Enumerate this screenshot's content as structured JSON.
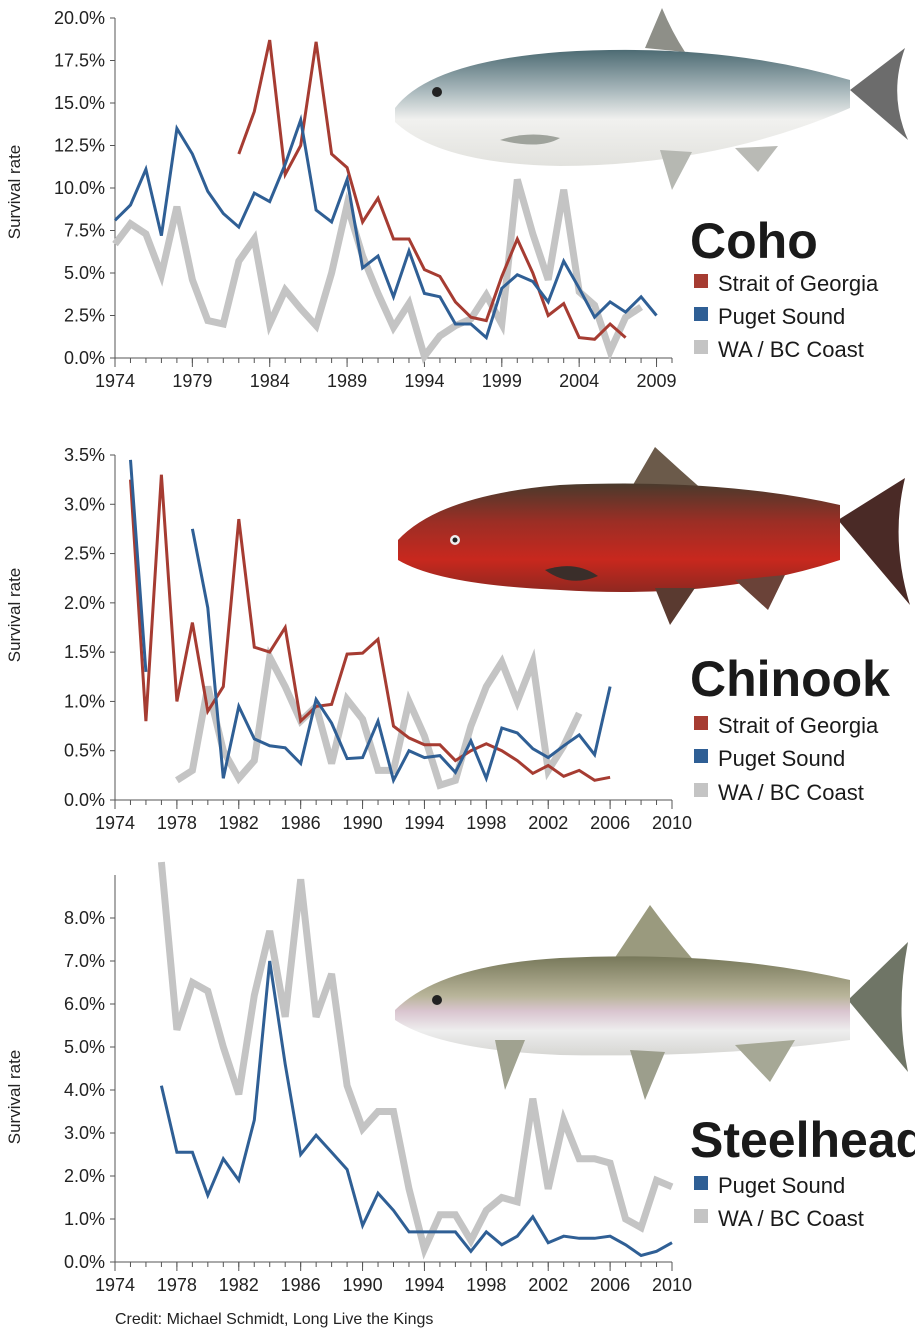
{
  "credit": "Credit: Michael Schmidt, Long Live the Kings",
  "colors": {
    "strait_of_georgia": "#a63c32",
    "puget_sound": "#2f5f95",
    "wa_bc_coast": "#c4c4c4"
  },
  "chart_data": [
    {
      "type": "line",
      "title": "Coho",
      "ylabel": "Survival rate",
      "ylim": [
        0,
        20
      ],
      "y_ticks": [
        "0.0%",
        "2.5%",
        "5.0%",
        "7.5%",
        "10.0%",
        "12.5%",
        "15.0%",
        "17.5%",
        "20.0%"
      ],
      "xlim": [
        1974,
        2010
      ],
      "x_ticks": [
        "1974",
        "1979",
        "1984",
        "1989",
        "1994",
        "1999",
        "2004",
        "2009"
      ],
      "series": [
        {
          "name": "Strait of Georgia",
          "color": "#a63c32",
          "x": [
            1982,
            1983,
            1984,
            1985,
            1986,
            1987,
            1988,
            1989,
            1990,
            1991,
            1992,
            1993,
            1994,
            1995,
            1996,
            1997,
            1998,
            1999,
            2000,
            2001,
            2002,
            2003,
            2004,
            2005,
            2006,
            2007
          ],
          "y": [
            12.0,
            14.5,
            18.7,
            10.8,
            12.5,
            18.6,
            12.0,
            11.2,
            8.0,
            9.4,
            7.0,
            7.0,
            5.2,
            4.8,
            3.3,
            2.4,
            2.2,
            4.8,
            7.0,
            5.0,
            2.5,
            3.2,
            1.2,
            1.1,
            2.0,
            1.2
          ]
        },
        {
          "name": "Puget Sound",
          "color": "#2f5f95",
          "x": [
            1974,
            1975,
            1976,
            1977,
            1978,
            1979,
            1980,
            1981,
            1982,
            1983,
            1984,
            1985,
            1986,
            1987,
            1988,
            1989,
            1990,
            1991,
            1992,
            1993,
            1994,
            1995,
            1996,
            1997,
            1998,
            1999,
            2000,
            2001,
            2002,
            2003,
            2004,
            2005,
            2006,
            2007,
            2008,
            2009
          ],
          "y": [
            8.1,
            9.0,
            11.1,
            7.2,
            13.5,
            12.0,
            9.8,
            8.5,
            7.7,
            9.7,
            9.2,
            11.4,
            14.0,
            8.7,
            8.0,
            10.5,
            5.3,
            6.0,
            3.6,
            6.3,
            3.8,
            3.6,
            2.0,
            2.0,
            1.2,
            4.1,
            4.9,
            4.5,
            3.3,
            5.7,
            4.1,
            2.4,
            3.3,
            2.7,
            3.6,
            2.5
          ]
        },
        {
          "name": "WA / BC Coast",
          "color": "#c4c4c4",
          "x": [
            1974,
            1975,
            1976,
            1977,
            1978,
            1979,
            1980,
            1981,
            1982,
            1983,
            1984,
            1985,
            1986,
            1987,
            1988,
            1989,
            1990,
            1991,
            1992,
            1993,
            1994,
            1995,
            1996,
            1997,
            1998,
            1999,
            2000,
            2001,
            2002,
            2003,
            2004,
            2005,
            2006,
            2007,
            2008
          ],
          "y": [
            6.7,
            7.9,
            7.3,
            4.9,
            8.9,
            4.6,
            2.2,
            2.0,
            5.7,
            7.0,
            2.0,
            4.0,
            2.9,
            1.9,
            5.0,
            9.0,
            6.0,
            3.8,
            1.8,
            3.2,
            0.1,
            1.3,
            1.9,
            2.3,
            3.7,
            2.0,
            10.5,
            7.3,
            4.6,
            9.9,
            3.9,
            3.1,
            0.4,
            2.4,
            3.0
          ]
        }
      ]
    },
    {
      "type": "line",
      "title": "Chinook",
      "ylabel": "Survival rate",
      "ylim": [
        0,
        3.5
      ],
      "y_ticks": [
        "0.0%",
        "0.5%",
        "1.0%",
        "1.5%",
        "2.0%",
        "2.5%",
        "3.0%",
        "3.5%"
      ],
      "xlim": [
        1974,
        2010
      ],
      "x_ticks": [
        "1974",
        "1978",
        "1982",
        "1986",
        "1990",
        "1994",
        "1998",
        "2002",
        "2006",
        "2010"
      ],
      "series": [
        {
          "name": "Strait of Georgia",
          "color": "#a63c32",
          "x": [
            1975,
            1976,
            1977,
            1978,
            1979,
            1980,
            1981,
            1982,
            1983,
            1984,
            1985,
            1986,
            1987,
            1988,
            1989,
            1990,
            1991,
            1992,
            1993,
            1994,
            1995,
            1996,
            1997,
            1998,
            1999,
            2000,
            2001,
            2002,
            2003,
            2004,
            2005,
            2006
          ],
          "y": [
            3.25,
            0.8,
            3.3,
            1.0,
            1.8,
            0.9,
            1.15,
            2.85,
            1.55,
            1.5,
            1.75,
            0.8,
            0.95,
            0.97,
            1.48,
            1.49,
            1.63,
            0.75,
            0.63,
            0.56,
            0.56,
            0.4,
            0.5,
            0.57,
            0.5,
            0.4,
            0.27,
            0.35,
            0.24,
            0.3,
            0.2,
            0.23
          ]
        },
        {
          "name": "Puget Sound",
          "color": "#2f5f95",
          "x": [
            1975,
            1976,
            1977,
            1979,
            1980,
            1981,
            1982,
            1983,
            1984,
            1985,
            1986,
            1987,
            1988,
            1989,
            1990,
            1991,
            1992,
            1993,
            1994,
            1995,
            1996,
            1997,
            1998,
            1999,
            2000,
            2001,
            2002,
            2003,
            2004,
            2005,
            2006
          ],
          "y": [
            3.45,
            1.3,
            null,
            2.75,
            1.95,
            0.22,
            0.95,
            0.62,
            0.55,
            0.53,
            0.37,
            1.02,
            0.78,
            0.42,
            0.43,
            0.8,
            0.2,
            0.5,
            0.43,
            0.45,
            0.28,
            0.6,
            0.22,
            0.73,
            0.68,
            0.52,
            0.43,
            0.55,
            0.66,
            0.46,
            1.15
          ]
        },
        {
          "name": "WA / BC Coast",
          "color": "#c4c4c4",
          "x": [
            1978,
            1979,
            1980,
            1981,
            1982,
            1983,
            1984,
            1985,
            1986,
            1987,
            1988,
            1989,
            1990,
            1991,
            1992,
            1993,
            1994,
            1995,
            1996,
            1997,
            1998,
            1999,
            2000,
            2001,
            2002,
            2003,
            2004
          ],
          "y": [
            0.2,
            0.3,
            1.15,
            0.5,
            0.22,
            0.4,
            1.45,
            1.15,
            0.8,
            0.95,
            0.37,
            1.02,
            0.82,
            0.3,
            0.3,
            1.0,
            0.65,
            0.15,
            0.2,
            0.75,
            1.15,
            1.4,
            1.0,
            1.4,
            0.3,
            0.55,
            0.88
          ]
        }
      ]
    },
    {
      "type": "line",
      "title": "Steelhead",
      "ylabel": "Survival rate",
      "ylim": [
        0,
        9
      ],
      "y_ticks": [
        "0.0%",
        "1.0%",
        "2.0%",
        "3.0%",
        "4.0%",
        "5.0%",
        "6.0%",
        "7.0%",
        "8.0%"
      ],
      "xlim": [
        1974,
        2010
      ],
      "x_ticks": [
        "1974",
        "1978",
        "1982",
        "1986",
        "1990",
        "1994",
        "1998",
        "2002",
        "2006",
        "2010"
      ],
      "series": [
        {
          "name": "Puget Sound",
          "color": "#2f5f95",
          "x": [
            1977,
            1978,
            1979,
            1980,
            1981,
            1982,
            1983,
            1984,
            1985,
            1986,
            1987,
            1988,
            1989,
            1990,
            1991,
            1992,
            1993,
            1994,
            1995,
            1996,
            1997,
            1998,
            1999,
            2000,
            2001,
            2002,
            2003,
            2004,
            2005,
            2006,
            2007,
            2008,
            2009,
            2010
          ],
          "y": [
            4.1,
            2.55,
            2.55,
            1.55,
            2.4,
            1.9,
            3.3,
            7.0,
            4.6,
            2.5,
            2.95,
            2.55,
            2.15,
            0.85,
            1.6,
            1.2,
            0.7,
            0.7,
            0.7,
            0.7,
            0.25,
            0.7,
            0.4,
            0.6,
            1.05,
            0.45,
            0.6,
            0.55,
            0.55,
            0.6,
            0.4,
            0.15,
            0.25,
            0.45
          ]
        },
        {
          "name": "WA / BC Coast",
          "color": "#c4c4c4",
          "x": [
            1977,
            1978,
            1979,
            1980,
            1981,
            1982,
            1983,
            1984,
            1985,
            1986,
            1987,
            1988,
            1989,
            1990,
            1991,
            1992,
            1993,
            1994,
            1995,
            1996,
            1997,
            1998,
            1999,
            2000,
            2001,
            2002,
            2003,
            2004,
            2005,
            2006,
            2007,
            2008,
            2009,
            2010
          ],
          "y": [
            9.3,
            5.4,
            6.5,
            6.3,
            5.0,
            3.9,
            6.2,
            7.7,
            5.7,
            8.9,
            5.7,
            6.7,
            4.1,
            3.1,
            3.5,
            3.5,
            1.7,
            0.3,
            1.1,
            1.1,
            0.5,
            1.2,
            1.5,
            1.4,
            3.8,
            1.7,
            3.3,
            2.4,
            2.4,
            2.3,
            1.0,
            0.8,
            1.9,
            1.75
          ]
        }
      ]
    }
  ]
}
